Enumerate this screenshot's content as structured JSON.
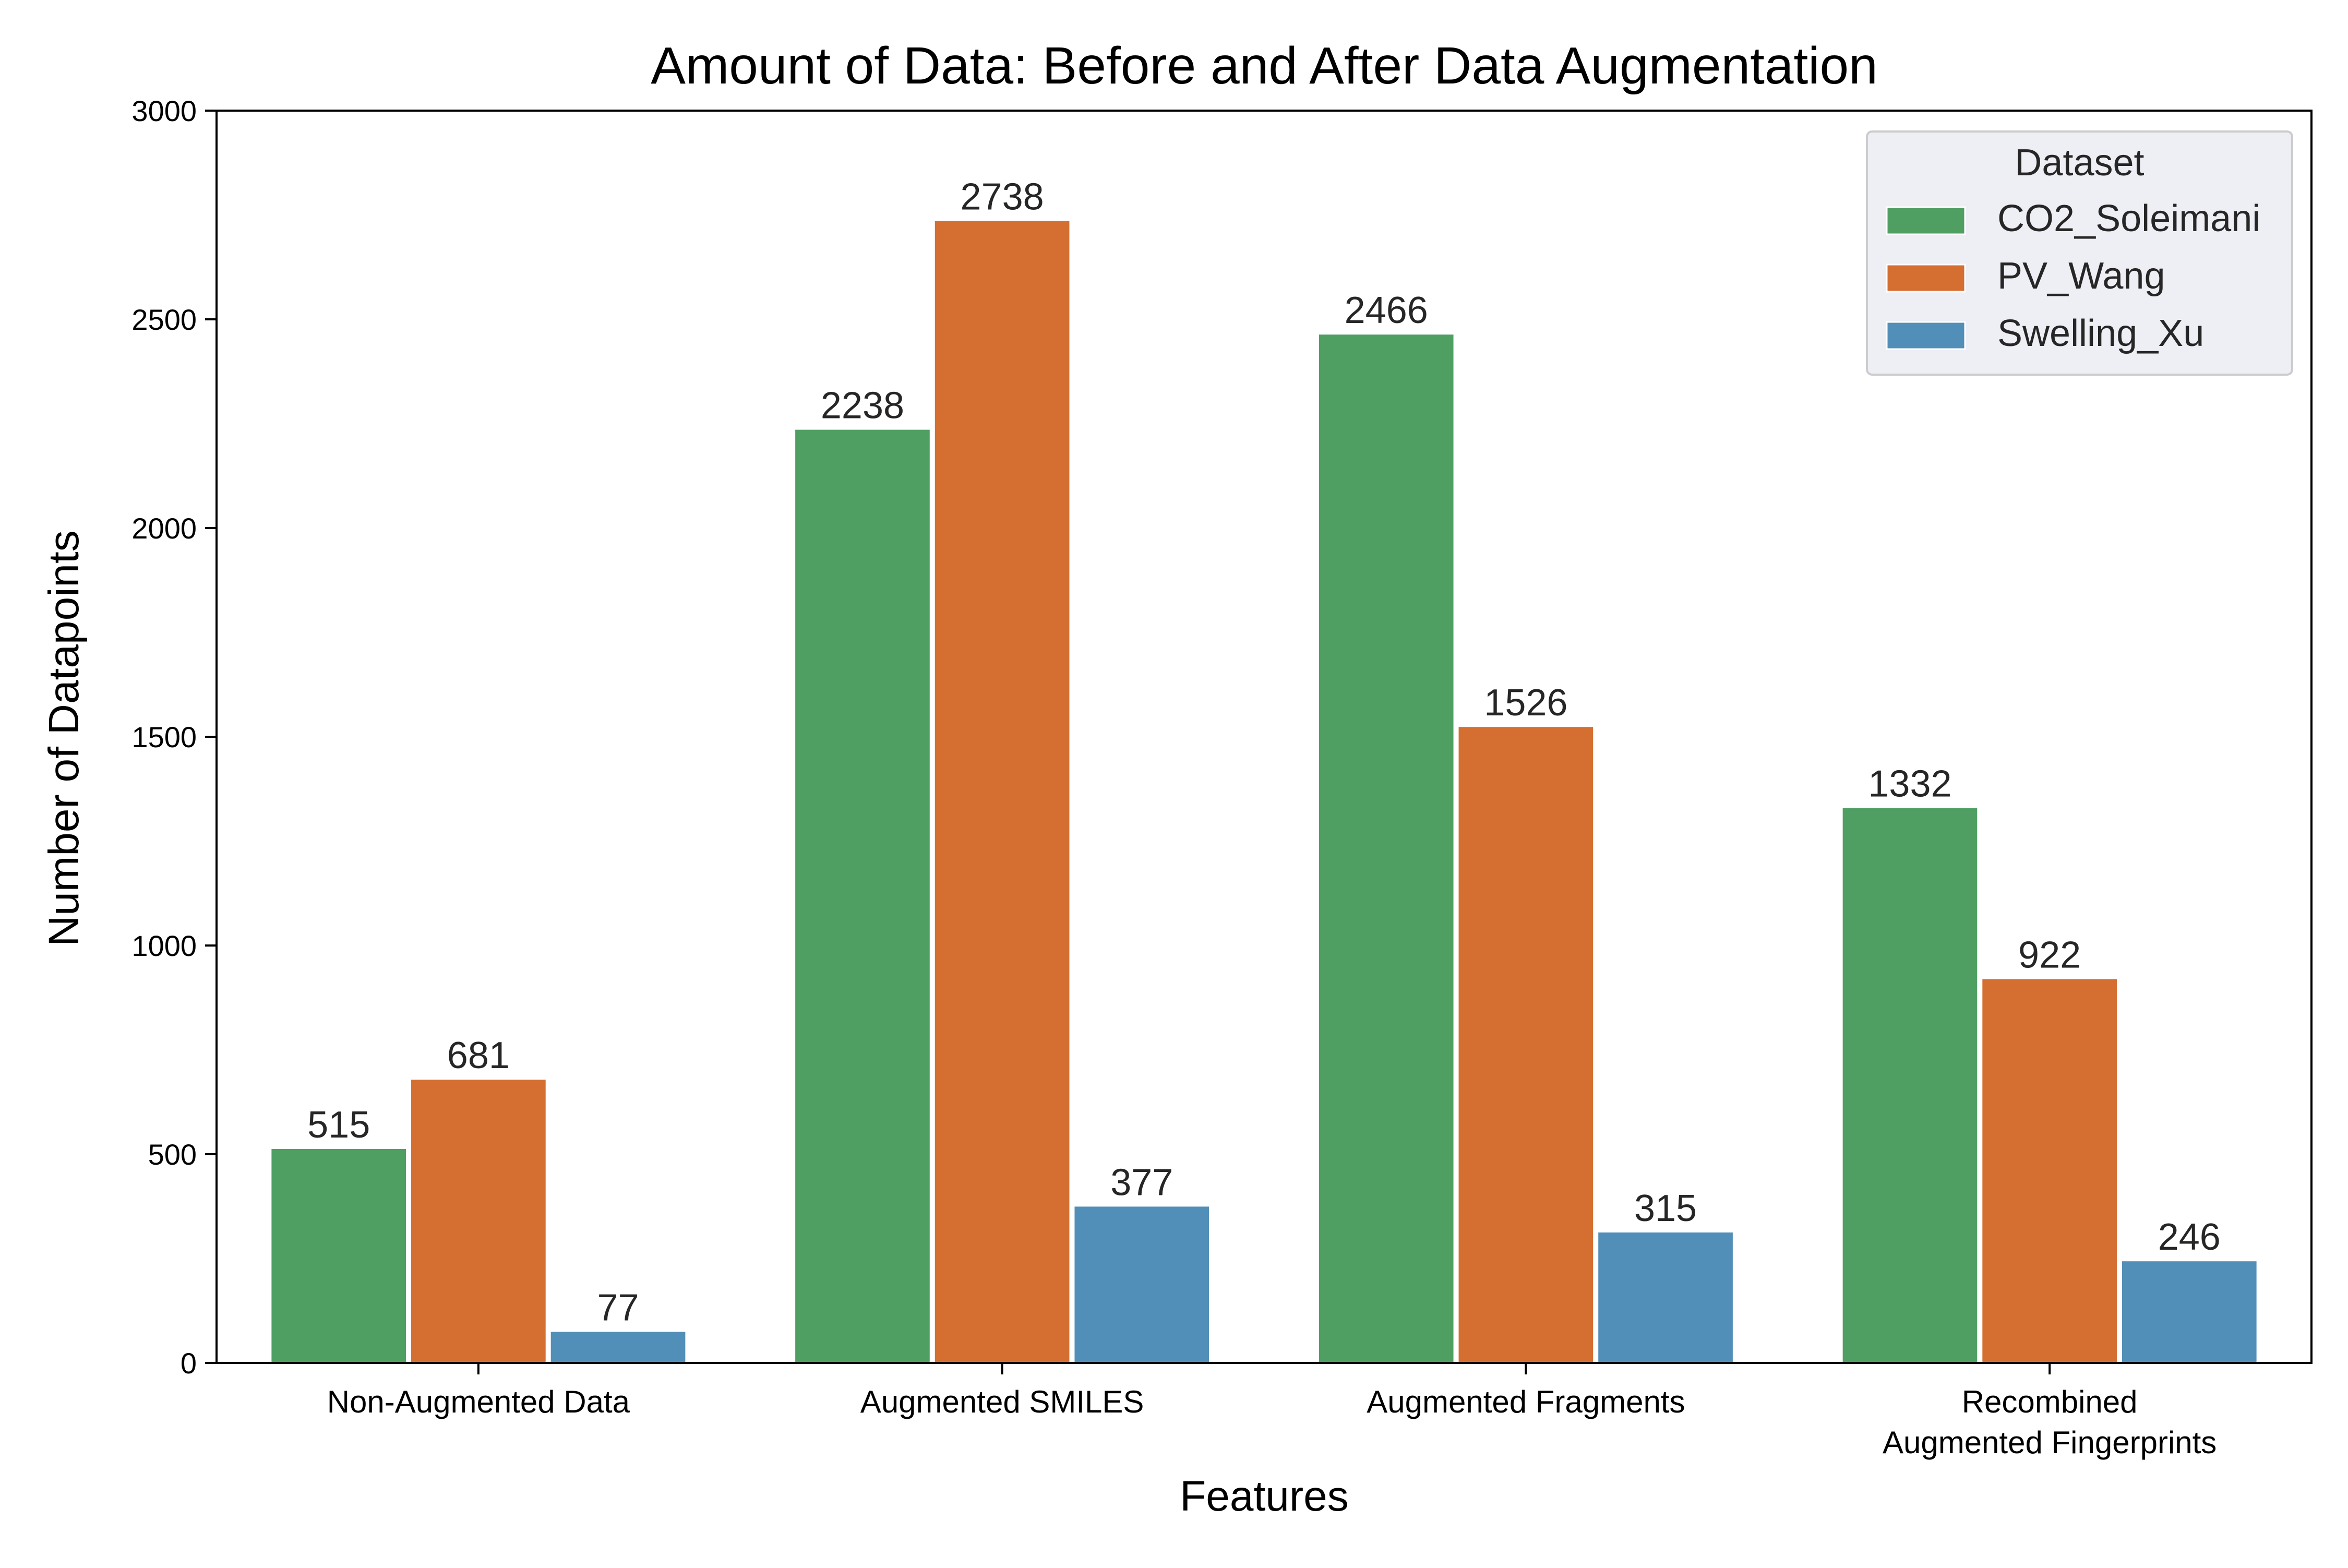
{
  "chart_data": {
    "type": "bar",
    "title": "Amount of Data: Before and After Data Augmentation",
    "xlabel": "Features",
    "ylabel": "Number of Datapoints",
    "ylim": [
      0,
      3000
    ],
    "yticks": [
      0,
      500,
      1000,
      1500,
      2000,
      2500,
      3000
    ],
    "categories": [
      [
        "Non-Augmented Data"
      ],
      [
        "Augmented SMILES"
      ],
      [
        "Augmented Fragments"
      ],
      [
        "Recombined",
        "Augmented Fingerprints"
      ]
    ],
    "series": [
      {
        "name": "CO2_Soleimani",
        "color": "#4f9f63",
        "values": [
          515,
          2238,
          2466,
          1332
        ]
      },
      {
        "name": "PV_Wang",
        "color": "#d46f31",
        "values": [
          681,
          2738,
          1526,
          922
        ]
      },
      {
        "name": "Swelling_Xu",
        "color": "#528fb8",
        "values": [
          77,
          377,
          315,
          246
        ]
      }
    ],
    "legend": {
      "title": "Dataset",
      "position": "top-right"
    },
    "grid": false
  }
}
